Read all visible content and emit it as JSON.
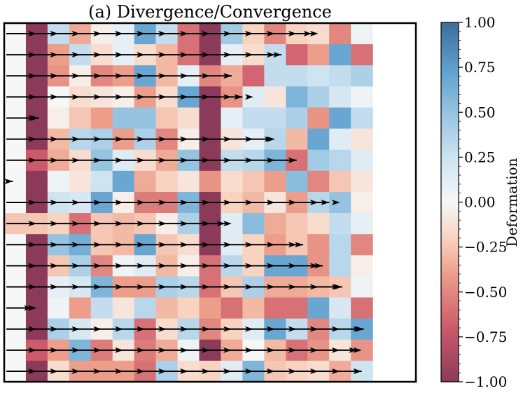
{
  "chart_data": {
    "type": "heatmap",
    "title": "(a) Divergence/Convergence",
    "colorbar": {
      "label": "Deformation",
      "range": [
        -1.0,
        1.0
      ],
      "ticks": [
        "1.00",
        "0.75",
        "0.50",
        "0.25",
        "0.00",
        "−0.25",
        "−0.50",
        "−0.75",
        "−1.00"
      ],
      "tick_values": [
        1.0,
        0.75,
        0.5,
        0.25,
        0.0,
        -0.25,
        -0.5,
        -0.75,
        -1.0
      ],
      "colormap": "RdBu",
      "colors": {
        "low": "#8b3a5a",
        "mid_low": "#d6606d",
        "light_low": "#f6c4ae",
        "mid": "#f6f7f7",
        "light_high": "#c2ddee",
        "mid_high": "#5e9fcf",
        "high": "#3e6c9a"
      }
    },
    "grid": {
      "rows": 17,
      "cols": 19
    },
    "values": [
      [
        0.0,
        -1.0,
        0.3,
        -0.35,
        -0.05,
        0.1,
        0.7,
        0.3,
        -0.6,
        -1.0,
        0.45,
        -0.2,
        -0.5,
        -0.2,
        -0.15,
        -0.5,
        0.05,
        null,
        null
      ],
      [
        0.0,
        -1.0,
        -0.4,
        0.3,
        -0.15,
        0.1,
        -0.15,
        -0.3,
        -0.6,
        -1.0,
        0.1,
        -0.15,
        0.3,
        -0.65,
        -0.4,
        0.7,
        -0.6,
        null,
        null
      ],
      [
        0.0,
        -1.0,
        -0.45,
        -0.05,
        -0.5,
        -0.4,
        0.7,
        -0.3,
        0.1,
        -0.5,
        -0.35,
        -0.65,
        0.3,
        0.3,
        0.25,
        0.3,
        0.4,
        null,
        null
      ],
      [
        0.0,
        -1.0,
        0.0,
        -0.15,
        -0.1,
        -0.05,
        -0.4,
        -0.15,
        0.7,
        -1.0,
        -0.45,
        0.15,
        -0.1,
        0.6,
        0.4,
        0.2,
        0.05,
        null,
        null
      ],
      [
        0.0,
        -1.0,
        -0.05,
        -0.25,
        -0.4,
        0.5,
        0.5,
        -0.25,
        -0.15,
        -1.0,
        0.1,
        0.3,
        0.3,
        0.4,
        -0.45,
        0.7,
        0.3,
        null,
        null
      ],
      [
        0.0,
        -1.0,
        -0.3,
        0.35,
        0.4,
        -0.4,
        0.4,
        -0.5,
        -0.05,
        -1.0,
        -0.1,
        0.1,
        0.35,
        -0.3,
        0.7,
        0.15,
        -0.1,
        null,
        null
      ],
      [
        0.0,
        -0.7,
        -0.35,
        -0.15,
        0.5,
        0.15,
        -0.15,
        -0.35,
        0.5,
        -1.0,
        0.3,
        0.35,
        0.6,
        -0.6,
        0.45,
        0.35,
        0.15,
        null,
        null
      ],
      [
        0.0,
        -1.0,
        0.05,
        -0.1,
        0.25,
        0.7,
        -0.35,
        -0.2,
        -0.1,
        -0.45,
        -0.15,
        -0.25,
        -0.4,
        0.55,
        -0.5,
        -0.25,
        -0.1,
        null,
        null
      ],
      [
        0.0,
        -1.0,
        0.25,
        0.2,
        0.7,
        -0.05,
        -0.55,
        -0.55,
        0.6,
        -1.0,
        -0.2,
        -0.3,
        -0.1,
        -0.4,
        0.35,
        0.5,
        -0.05,
        null,
        null
      ],
      [
        -0.25,
        -0.25,
        -0.2,
        -0.6,
        -0.25,
        -0.3,
        -0.25,
        -0.05,
        0.4,
        -1.0,
        0.15,
        0.55,
        -0.35,
        -0.25,
        -0.15,
        0.3,
        0.1,
        null,
        null
      ],
      [
        0.0,
        -1.0,
        0.5,
        0.65,
        -0.25,
        -0.3,
        0.7,
        -0.25,
        -0.15,
        -1.0,
        0.15,
        -0.2,
        -0.4,
        -0.25,
        -0.45,
        0.35,
        -0.5,
        null,
        null
      ],
      [
        0.0,
        -1.0,
        -0.25,
        0.4,
        -0.5,
        0.05,
        0.15,
        -0.3,
        -0.05,
        -0.6,
        0.35,
        -0.2,
        0.7,
        0.7,
        -0.45,
        0.35,
        -0.05,
        null,
        null
      ],
      [
        0.0,
        -1.0,
        0.1,
        0.2,
        0.6,
        -0.4,
        -0.4,
        0.4,
        0.35,
        -0.6,
        -0.25,
        0.4,
        -0.35,
        -0.35,
        -0.3,
        -0.25,
        0.05,
        null,
        null
      ],
      [
        0.0,
        -1.0,
        0.05,
        -0.4,
        0.3,
        -0.1,
        0.35,
        -0.3,
        -0.2,
        -0.4,
        -0.6,
        -0.3,
        -0.6,
        -0.6,
        0.7,
        0.2,
        -0.6,
        null,
        null
      ],
      [
        0.0,
        -1.0,
        0.4,
        0.2,
        -0.05,
        0.35,
        -0.6,
        -0.15,
        0.35,
        -0.5,
        -0.2,
        0.15,
        0.7,
        0.3,
        -0.5,
        0.35,
        0.7,
        null,
        null
      ],
      [
        0.0,
        -0.7,
        -0.4,
        0.6,
        -0.55,
        -0.1,
        -0.55,
        -0.35,
        0.05,
        -1.0,
        -0.35,
        0.0,
        -0.3,
        -0.6,
        -0.45,
        -0.1,
        -0.45,
        null,
        null
      ],
      [
        0.0,
        -1.0,
        -0.15,
        -0.4,
        -0.4,
        -0.4,
        -0.6,
        0.4,
        -0.15,
        -0.2,
        0.15,
        0.6,
        -0.25,
        -0.2,
        -0.15,
        -0.35,
        0.25,
        null,
        null
      ]
    ],
    "arrows": [
      {
        "row": 0,
        "x0": 0.1,
        "x1": 14.2,
        "dir": "right"
      },
      {
        "row": 1,
        "x0": 0.1,
        "x1": 12.8,
        "dir": "right"
      },
      {
        "row": 2,
        "x0": 0.1,
        "x1": 10.5,
        "dir": "right"
      },
      {
        "row": 3,
        "x0": 0.1,
        "x1": 11.0,
        "dir": "right"
      },
      {
        "row": 4,
        "x0": 0.1,
        "x1": 1.6,
        "dir": "right"
      },
      {
        "row": 5,
        "x0": 0.1,
        "x1": 12.4,
        "dir": "right"
      },
      {
        "row": 6,
        "x0": 0.1,
        "x1": 13.5,
        "dir": "right"
      },
      {
        "row": 7,
        "x0": 0.1,
        "x1": 0.4,
        "dir": "right"
      },
      {
        "row": 8,
        "x0": 0.1,
        "x1": 15.0,
        "dir": "right"
      },
      {
        "row": 9,
        "x0": 0.1,
        "x1": 10.2,
        "dir": "right"
      },
      {
        "row": 10,
        "x0": 0.1,
        "x1": 13.8,
        "dir": "right"
      },
      {
        "row": 11,
        "x0": 0.1,
        "x1": 14.7,
        "dir": "right"
      },
      {
        "row": 12,
        "x0": 0.1,
        "x1": 15.6,
        "dir": "right"
      },
      {
        "row": 13,
        "x0": 0.1,
        "x1": 1.3,
        "dir": "right"
      },
      {
        "row": 14,
        "x0": 0.1,
        "x1": 16.6,
        "dir": "right"
      },
      {
        "row": 15,
        "x0": 0.1,
        "x1": 16.3,
        "dir": "right"
      },
      {
        "row": 16,
        "x0": 0.1,
        "x1": 16.5,
        "dir": "right"
      }
    ]
  }
}
